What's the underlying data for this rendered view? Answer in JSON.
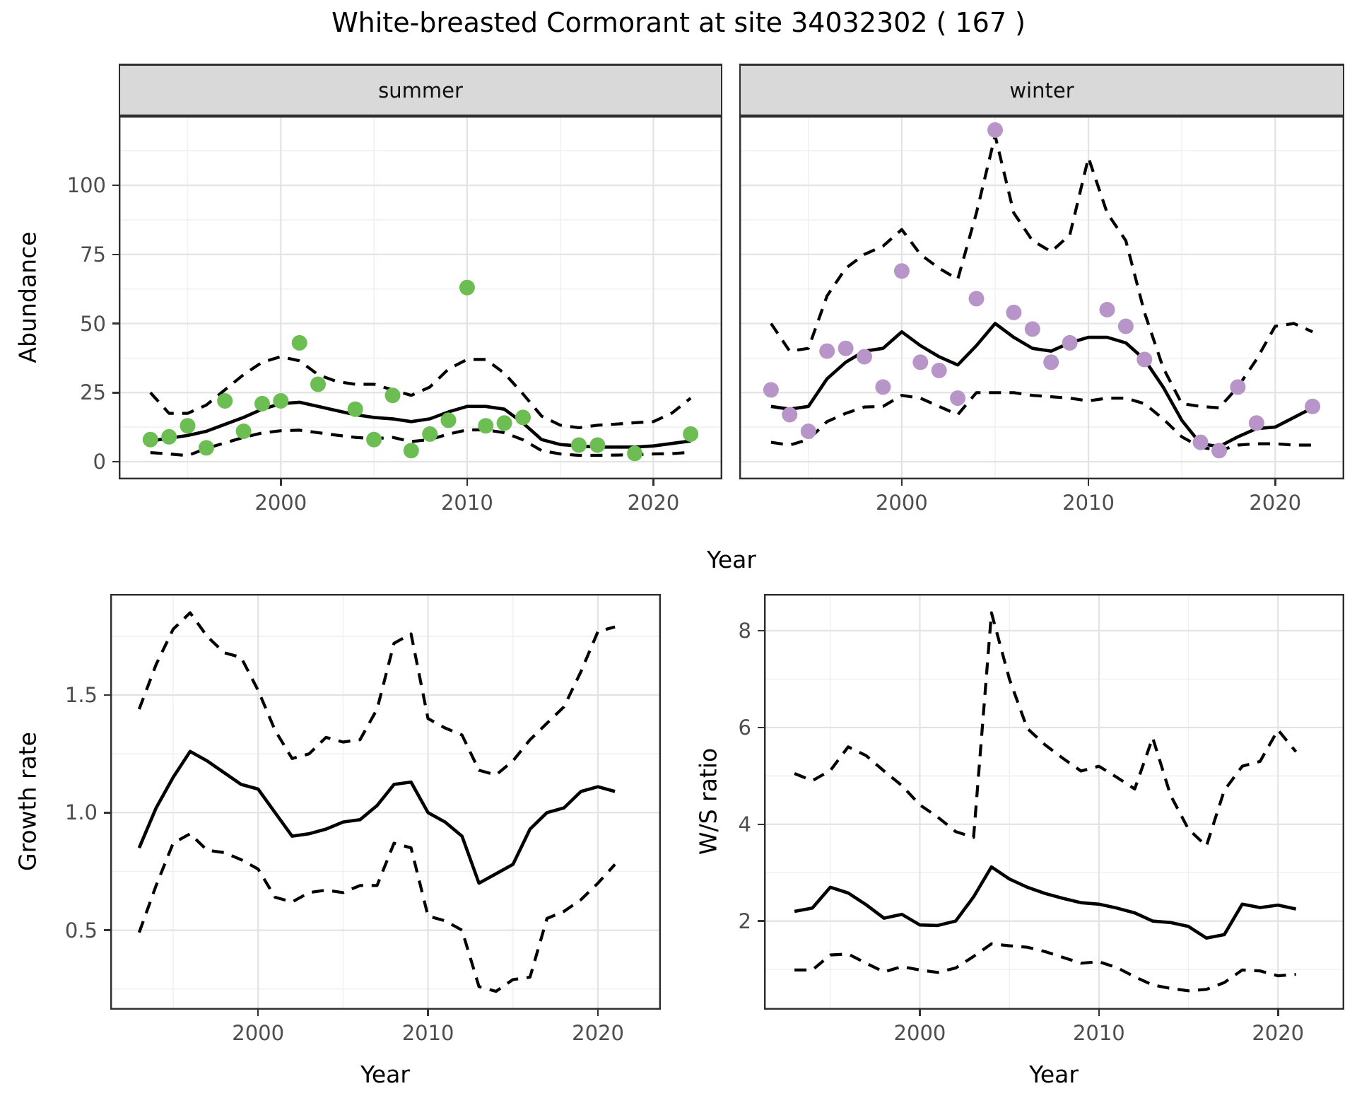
{
  "title": "White-breasted Cormorant at site 34032302 ( 167 )",
  "colors": {
    "summer_point": "#6CBE53",
    "winter_point": "#B795C9",
    "fit_line": "#000000",
    "ci_line": "#000000",
    "grid_major": "#E3E3E3",
    "grid_minor": "#EFEFEF",
    "panel_border": "#2E2E2E",
    "strip_bg": "#D9D9D9",
    "tick_label": "#4D4D4D"
  },
  "chart_data": [
    {
      "id": "abundance_summer",
      "type": "scatter",
      "facet_label": "summer",
      "x_label": "Year",
      "y_label": "Abundance",
      "x_domain": [
        1991.3,
        2023.7
      ],
      "x_ticks": [
        2000,
        2010,
        2020
      ],
      "x_minor": [
        1995,
        2005,
        2015
      ],
      "y_domain": [
        -6.4,
        125.1
      ],
      "y_ticks": [
        0,
        25,
        50,
        75,
        100
      ],
      "y_tick_labels": [
        "0",
        "25",
        "50",
        "75",
        "100"
      ],
      "y_minor": [
        12.5,
        37.5,
        62.5,
        87.5,
        112.5
      ],
      "points": {
        "years": [
          1993,
          1994,
          1995,
          1996,
          1997,
          1998,
          1999,
          2000,
          2001,
          2002,
          2004,
          2005,
          2006,
          2007,
          2008,
          2009,
          2010,
          2011,
          2012,
          2013,
          2016,
          2017,
          2019,
          2022
        ],
        "values": [
          8,
          9,
          13,
          5,
          22,
          11,
          21,
          22,
          43,
          28,
          19,
          8,
          24,
          4,
          10,
          15,
          63,
          13,
          14,
          16,
          6,
          6,
          3,
          10
        ]
      },
      "series": [
        {
          "name": "fit",
          "style": "solid",
          "years": [
            1993,
            1994,
            1995,
            1996,
            1997,
            1998,
            1999,
            2000,
            2001,
            2002,
            2003,
            2004,
            2005,
            2006,
            2007,
            2008,
            2009,
            2010,
            2011,
            2012,
            2013,
            2014,
            2015,
            2016,
            2017,
            2018,
            2019,
            2020,
            2021,
            2022
          ],
          "values": [
            7.5,
            8.5,
            9.5,
            11,
            13.5,
            16,
            19,
            21,
            21.5,
            20,
            18.5,
            17,
            16,
            15.5,
            14.5,
            15.5,
            18,
            20,
            20,
            19,
            14,
            8,
            6.2,
            5.7,
            5.3,
            5.3,
            5.3,
            5.7,
            6.6,
            7.5
          ]
        },
        {
          "name": "upper_ci",
          "style": "dashed",
          "years": [
            1993,
            1994,
            1995,
            1996,
            1997,
            1998,
            1999,
            2000,
            2001,
            2002,
            2003,
            2004,
            2005,
            2006,
            2007,
            2008,
            2009,
            2010,
            2011,
            2012,
            2013,
            2014,
            2015,
            2016,
            2017,
            2018,
            2019,
            2020,
            2021,
            2022
          ],
          "values": [
            25,
            17.5,
            17.5,
            20.5,
            26,
            31.5,
            36,
            38,
            36.5,
            31.5,
            29,
            28,
            28,
            26,
            24,
            27,
            33.5,
            37,
            37,
            32,
            24.5,
            16.5,
            13.2,
            12.3,
            13.2,
            13.6,
            14.1,
            14.5,
            17.6,
            23
          ]
        },
        {
          "name": "lower_ci",
          "style": "dashed",
          "years": [
            1993,
            1994,
            1995,
            1996,
            1997,
            1998,
            1999,
            2000,
            2001,
            2002,
            2003,
            2004,
            2005,
            2006,
            2007,
            2008,
            2009,
            2010,
            2011,
            2012,
            2013,
            2014,
            2015,
            2016,
            2017,
            2018,
            2019,
            2020,
            2021,
            2022
          ],
          "values": [
            3.3,
            2.8,
            2.2,
            4.8,
            6.8,
            8.8,
            10.4,
            11.2,
            11.4,
            10.5,
            9.6,
            8.8,
            8.3,
            8.8,
            7.3,
            8,
            10,
            11.5,
            11.5,
            10.5,
            7.9,
            4,
            2.8,
            2.3,
            2.3,
            2.4,
            2.5,
            2.8,
            2.9,
            3.4
          ]
        }
      ],
      "point_color": "#6CBE53"
    },
    {
      "id": "abundance_winter",
      "type": "scatter",
      "facet_label": "winter",
      "x_label": "Year",
      "y_label": "Abundance",
      "x_domain": [
        1991.3,
        2023.7
      ],
      "x_ticks": [
        2000,
        2010,
        2020
      ],
      "x_minor": [
        1995,
        2005,
        2015
      ],
      "y_domain": [
        -6.4,
        125.1
      ],
      "y_ticks": [
        0,
        25,
        50,
        75,
        100
      ],
      "y_tick_labels": [
        "0",
        "25",
        "50",
        "75",
        "100"
      ],
      "y_minor": [
        12.5,
        37.5,
        62.5,
        87.5,
        112.5
      ],
      "points": {
        "years": [
          1993,
          1994,
          1995,
          1996,
          1997,
          1998,
          1999,
          2000,
          2001,
          2002,
          2003,
          2004,
          2005,
          2006,
          2007,
          2008,
          2009,
          2011,
          2012,
          2013,
          2016,
          2017,
          2018,
          2019,
          2022
        ],
        "values": [
          26,
          17,
          11,
          40,
          41,
          38,
          27,
          69,
          36,
          33,
          23,
          59,
          120,
          54,
          48,
          36,
          43,
          55,
          49,
          37,
          7,
          4,
          27,
          14,
          20
        ]
      },
      "series": [
        {
          "name": "fit",
          "style": "solid",
          "years": [
            1993,
            1994,
            1995,
            1996,
            1997,
            1998,
            1999,
            2000,
            2001,
            2002,
            2003,
            2004,
            2005,
            2006,
            2007,
            2008,
            2009,
            2010,
            2011,
            2012,
            2013,
            2014,
            2015,
            2016,
            2017,
            2018,
            2019,
            2020,
            2021,
            2022
          ],
          "values": [
            20,
            19,
            20,
            30,
            36,
            40,
            41,
            47,
            42,
            38,
            35,
            42,
            50,
            45,
            41,
            40,
            43,
            45,
            45,
            43,
            37,
            27,
            15,
            6.5,
            5.5,
            9,
            12,
            12.5,
            16,
            19.5
          ]
        },
        {
          "name": "upper_ci",
          "style": "dashed",
          "years": [
            1993,
            1994,
            1995,
            1996,
            1997,
            1998,
            1999,
            2000,
            2001,
            2002,
            2003,
            2004,
            2005,
            2006,
            2007,
            2008,
            2009,
            2010,
            2011,
            2012,
            2013,
            2014,
            2015,
            2016,
            2017,
            2018,
            2019,
            2020,
            2021,
            2022
          ],
          "values": [
            50,
            40,
            41,
            60,
            70,
            75,
            78,
            84,
            75,
            70,
            66,
            90,
            118,
            90,
            80,
            76,
            82,
            110,
            90,
            80,
            54,
            34,
            21,
            20,
            19.5,
            27,
            37,
            49,
            50,
            47
          ]
        },
        {
          "name": "lower_ci",
          "style": "dashed",
          "years": [
            1993,
            1994,
            1995,
            1996,
            1997,
            1998,
            1999,
            2000,
            2001,
            2002,
            2003,
            2004,
            2005,
            2006,
            2007,
            2008,
            2009,
            2010,
            2011,
            2012,
            2013,
            2014,
            2015,
            2016,
            2017,
            2018,
            2019,
            2020,
            2021,
            2022
          ],
          "values": [
            7,
            6,
            8,
            14.5,
            17.5,
            19.8,
            20,
            24,
            23,
            20,
            17,
            25,
            25,
            25,
            24,
            23.5,
            23,
            22,
            23,
            23,
            21,
            15.5,
            9,
            5.3,
            4,
            6,
            6.5,
            6.5,
            6,
            6
          ]
        }
      ],
      "point_color": "#B795C9"
    },
    {
      "id": "growth_rate",
      "type": "line",
      "facet_label": "",
      "x_label": "Year",
      "y_label": "Growth rate",
      "x_domain": [
        1991.3,
        2023.7
      ],
      "x_ticks": [
        2000,
        2010,
        2020
      ],
      "x_minor": [
        1995,
        2005,
        2015
      ],
      "y_domain": [
        0.162,
        1.93
      ],
      "y_ticks": [
        0.5,
        1.0,
        1.5
      ],
      "y_tick_labels": [
        "0.5",
        "1.0",
        "1.5"
      ],
      "y_minor": [
        0.25,
        0.75,
        1.25,
        1.75
      ],
      "series": [
        {
          "name": "fit",
          "style": "solid",
          "years": [
            1993,
            1994,
            1995,
            1996,
            1997,
            1998,
            1999,
            2000,
            2001,
            2002,
            2003,
            2004,
            2005,
            2006,
            2007,
            2008,
            2009,
            2010,
            2011,
            2012,
            2013,
            2014,
            2015,
            2016,
            2017,
            2018,
            2019,
            2020,
            2021
          ],
          "values": [
            0.85,
            1.02,
            1.15,
            1.26,
            1.22,
            1.17,
            1.12,
            1.1,
            1.0,
            0.9,
            0.91,
            0.93,
            0.96,
            0.97,
            1.03,
            1.12,
            1.13,
            1.0,
            0.96,
            0.9,
            0.7,
            0.74,
            0.78,
            0.93,
            1.0,
            1.02,
            1.09,
            1.11,
            1.09
          ]
        },
        {
          "name": "upper_ci",
          "style": "dashed",
          "years": [
            1993,
            1994,
            1995,
            1996,
            1997,
            1998,
            1999,
            2000,
            2001,
            2002,
            2003,
            2004,
            2005,
            2006,
            2007,
            2008,
            2009,
            2010,
            2011,
            2012,
            2013,
            2014,
            2015,
            2016,
            2017,
            2018,
            2019,
            2020,
            2021
          ],
          "values": [
            1.44,
            1.63,
            1.78,
            1.85,
            1.75,
            1.68,
            1.66,
            1.52,
            1.35,
            1.23,
            1.25,
            1.32,
            1.3,
            1.31,
            1.44,
            1.72,
            1.76,
            1.4,
            1.36,
            1.33,
            1.18,
            1.16,
            1.22,
            1.31,
            1.38,
            1.45,
            1.6,
            1.77,
            1.79
          ]
        },
        {
          "name": "lower_ci",
          "style": "dashed",
          "years": [
            1993,
            1994,
            1995,
            1996,
            1997,
            1998,
            1999,
            2000,
            2001,
            2002,
            2003,
            2004,
            2005,
            2006,
            2007,
            2008,
            2009,
            2010,
            2011,
            2012,
            2013,
            2014,
            2015,
            2016,
            2017,
            2018,
            2019,
            2020,
            2021
          ],
          "values": [
            0.49,
            0.69,
            0.87,
            0.91,
            0.84,
            0.83,
            0.8,
            0.76,
            0.64,
            0.62,
            0.66,
            0.67,
            0.66,
            0.69,
            0.69,
            0.87,
            0.85,
            0.56,
            0.54,
            0.5,
            0.26,
            0.24,
            0.29,
            0.3,
            0.55,
            0.58,
            0.63,
            0.7,
            0.78
          ]
        }
      ]
    },
    {
      "id": "ws_ratio",
      "type": "line",
      "facet_label": "",
      "x_label": "Year",
      "y_label": "W/S ratio",
      "x_domain": [
        1991.3,
        2023.7
      ],
      "x_ticks": [
        2000,
        2010,
        2020
      ],
      "x_minor": [
        1995,
        2005,
        2015
      ],
      "y_domain": [
        0.17,
        8.76
      ],
      "y_ticks": [
        2,
        4,
        6,
        8
      ],
      "y_tick_labels": [
        "2",
        "4",
        "6",
        "8"
      ],
      "y_minor": [
        1,
        3,
        5,
        7
      ],
      "series": [
        {
          "name": "fit",
          "style": "solid",
          "years": [
            1993,
            1994,
            1995,
            1996,
            1997,
            1998,
            1999,
            2000,
            2001,
            2002,
            2003,
            2004,
            2005,
            2006,
            2007,
            2008,
            2009,
            2010,
            2011,
            2012,
            2013,
            2014,
            2015,
            2016,
            2017,
            2018,
            2019,
            2020,
            2021
          ],
          "values": [
            2.2,
            2.27,
            2.7,
            2.58,
            2.34,
            2.06,
            2.14,
            1.92,
            1.91,
            2.0,
            2.5,
            3.12,
            2.87,
            2.7,
            2.57,
            2.47,
            2.38,
            2.35,
            2.27,
            2.17,
            2.0,
            1.97,
            1.89,
            1.65,
            1.72,
            2.35,
            2.28,
            2.33,
            2.25
          ]
        },
        {
          "name": "upper_ci",
          "style": "dashed",
          "years": [
            1993,
            1994,
            1995,
            1996,
            1997,
            1998,
            1999,
            2000,
            2001,
            2002,
            2003,
            2004,
            2005,
            2006,
            2007,
            2008,
            2009,
            2010,
            2011,
            2012,
            2013,
            2014,
            2015,
            2016,
            2017,
            2018,
            2019,
            2020,
            2021
          ],
          "values": [
            5.05,
            4.9,
            5.11,
            5.6,
            5.42,
            5.1,
            4.8,
            4.4,
            4.15,
            3.85,
            3.73,
            8.37,
            7.0,
            5.98,
            5.64,
            5.36,
            5.1,
            5.2,
            4.97,
            4.73,
            5.79,
            4.6,
            3.9,
            3.55,
            4.7,
            5.2,
            5.3,
            5.95,
            5.5
          ]
        },
        {
          "name": "lower_ci",
          "style": "dashed",
          "years": [
            1993,
            1994,
            1995,
            1996,
            1997,
            1998,
            1999,
            2000,
            2001,
            2002,
            2003,
            2004,
            2005,
            2006,
            2007,
            2008,
            2009,
            2010,
            2011,
            2012,
            2013,
            2014,
            2015,
            2016,
            2017,
            2018,
            2019,
            2020,
            2021
          ],
          "values": [
            0.99,
            0.99,
            1.3,
            1.32,
            1.13,
            0.95,
            1.06,
            0.99,
            0.94,
            1.03,
            1.27,
            1.53,
            1.49,
            1.46,
            1.37,
            1.25,
            1.13,
            1.16,
            1.04,
            0.85,
            0.68,
            0.61,
            0.56,
            0.59,
            0.73,
            0.99,
            0.97,
            0.87,
            0.9
          ]
        }
      ]
    }
  ]
}
